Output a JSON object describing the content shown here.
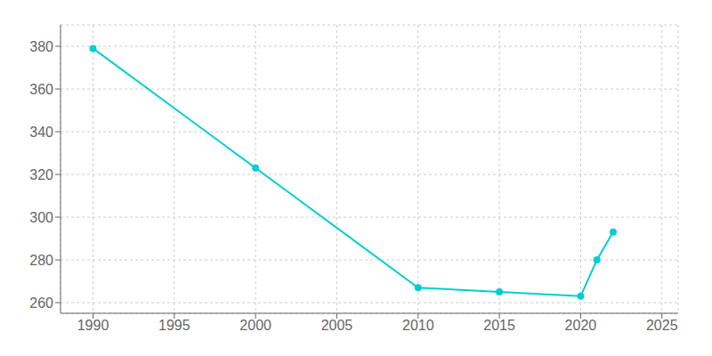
{
  "chart_data": {
    "type": "line",
    "x": [
      1990,
      2000,
      2010,
      2015,
      2020,
      2021,
      2022
    ],
    "values": [
      379,
      323,
      267,
      265,
      263,
      280,
      293
    ],
    "color": "#00CED1",
    "marker": "circle",
    "xlim": [
      1988,
      2026
    ],
    "ylim": [
      255,
      390
    ],
    "xticks": [
      1990,
      1995,
      2000,
      2005,
      2010,
      2015,
      2020,
      2025
    ],
    "yticks": [
      260,
      280,
      300,
      320,
      340,
      360,
      380
    ],
    "grid": true
  }
}
